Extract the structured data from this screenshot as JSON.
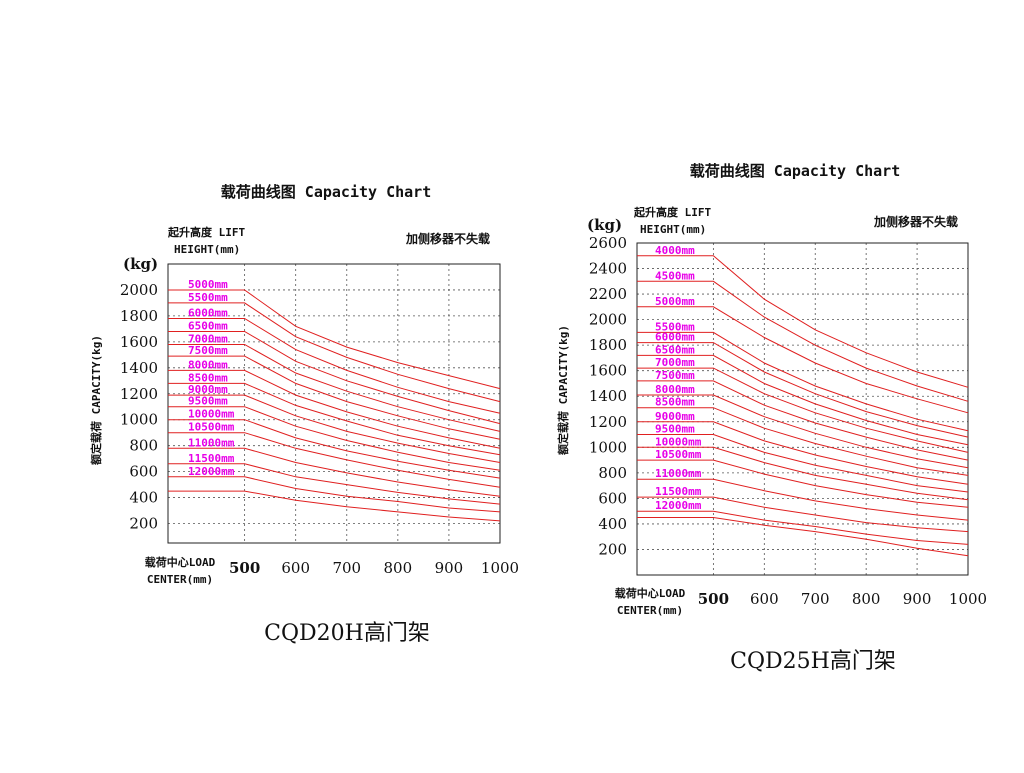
{
  "colors": {
    "curve": "#e02020",
    "lift_label": "#e800e8",
    "grid": "#555555",
    "frame": "#222222"
  },
  "chart_data": [
    {
      "type": "line",
      "title": "载荷曲线图 Capacity Chart",
      "lift_header_line1": "起升高度 LIFT",
      "lift_header_line2": "HEIGHT(mm)",
      "note": "加侧移器不失载",
      "y_unit": "(kg)",
      "ylabel": "额定载荷 CAPACITY(kg)",
      "xlabel_line1": "载荷中心LOAD",
      "xlabel_line2": "CENTER(mm)",
      "model": "CQD20H高门架",
      "xlim": [
        350,
        1000
      ],
      "ylim": [
        50,
        2200
      ],
      "x_ticks": [
        500,
        600,
        700,
        800,
        900,
        1000
      ],
      "y_ticks": [
        200,
        400,
        600,
        800,
        1000,
        1200,
        1400,
        1600,
        1800,
        2000
      ],
      "x_grid": [
        500,
        600,
        700,
        800,
        900
      ],
      "y_grid": [
        200,
        400,
        600,
        800,
        1000,
        1200,
        1400,
        1600,
        1800,
        2000
      ],
      "x": [
        350,
        500,
        600,
        700,
        800,
        900,
        1000
      ],
      "series": [
        {
          "name": "5000mm",
          "values": [
            2000,
            2000,
            1720,
            1560,
            1440,
            1340,
            1240
          ]
        },
        {
          "name": "5500mm",
          "values": [
            1900,
            1900,
            1640,
            1480,
            1350,
            1240,
            1140
          ]
        },
        {
          "name": "6000mm",
          "values": [
            1780,
            1780,
            1540,
            1380,
            1250,
            1140,
            1050
          ]
        },
        {
          "name": "6500mm",
          "values": [
            1680,
            1680,
            1450,
            1300,
            1180,
            1070,
            970
          ]
        },
        {
          "name": "7000mm",
          "values": [
            1580,
            1580,
            1360,
            1220,
            1100,
            1000,
            910
          ]
        },
        {
          "name": "7500mm",
          "values": [
            1490,
            1490,
            1280,
            1140,
            1030,
            930,
            850
          ]
        },
        {
          "name": "8000mm",
          "values": [
            1380,
            1380,
            1190,
            1060,
            950,
            860,
            780
          ]
        },
        {
          "name": "8500mm",
          "values": [
            1280,
            1280,
            1110,
            990,
            880,
            800,
            730
          ]
        },
        {
          "name": "9000mm",
          "values": [
            1190,
            1190,
            1030,
            910,
            820,
            740,
            670
          ]
        },
        {
          "name": "9500mm",
          "values": [
            1100,
            1100,
            950,
            840,
            750,
            670,
            610
          ]
        },
        {
          "name": "10000mm",
          "values": [
            1000,
            1000,
            860,
            760,
            680,
            610,
            550
          ]
        },
        {
          "name": "10500mm",
          "values": [
            900,
            900,
            780,
            690,
            610,
            540,
            480
          ]
        },
        {
          "name": "11000mm",
          "values": [
            780,
            780,
            670,
            590,
            520,
            460,
            410
          ]
        },
        {
          "name": "11500mm",
          "values": [
            660,
            660,
            560,
            500,
            440,
            390,
            350
          ]
        },
        {
          "name": "12000mm",
          "values": [
            560,
            560,
            470,
            410,
            370,
            320,
            290
          ]
        },
        {
          "name": "",
          "values": [
            450,
            450,
            380,
            330,
            290,
            250,
            220
          ]
        }
      ]
    },
    {
      "type": "line",
      "title": "载荷曲线图 Capacity Chart",
      "lift_header_line1": "起升高度 LIFT",
      "lift_header_line2": "HEIGHT(mm)",
      "note": "加侧移器不失载",
      "y_unit": "(kg)",
      "ylabel": "额定载荷 CAPACITY(kg)",
      "xlabel_line1": "载荷中心LOAD",
      "xlabel_line2": "CENTER(mm)",
      "model": "CQD25H高门架",
      "xlim": [
        350,
        1000
      ],
      "ylim": [
        0,
        2600
      ],
      "x_ticks": [
        500,
        600,
        700,
        800,
        900,
        1000
      ],
      "y_ticks": [
        200,
        400,
        600,
        800,
        1000,
        1200,
        1400,
        1600,
        1800,
        2000,
        2200,
        2400,
        2600
      ],
      "x_grid": [
        500,
        600,
        700,
        800,
        900
      ],
      "y_grid": [
        200,
        400,
        600,
        800,
        1000,
        1200,
        1400,
        1600,
        1800,
        2000,
        2200,
        2400
      ],
      "x": [
        350,
        500,
        600,
        700,
        800,
        900,
        1000
      ],
      "series": [
        {
          "name": "4000mm",
          "values": [
            2500,
            2500,
            2160,
            1920,
            1740,
            1590,
            1470
          ]
        },
        {
          "name": "4500mm",
          "values": [
            2300,
            2300,
            2020,
            1800,
            1620,
            1480,
            1360
          ]
        },
        {
          "name": "5000mm",
          "values": [
            2100,
            2100,
            1860,
            1660,
            1500,
            1380,
            1270
          ]
        },
        {
          "name": "5500mm",
          "values": [
            1900,
            1900,
            1660,
            1480,
            1340,
            1220,
            1130
          ]
        },
        {
          "name": "6000mm",
          "values": [
            1820,
            1820,
            1590,
            1420,
            1280,
            1170,
            1080
          ]
        },
        {
          "name": "6500mm",
          "values": [
            1720,
            1720,
            1500,
            1340,
            1210,
            1100,
            1020
          ]
        },
        {
          "name": "7000mm",
          "values": [
            1620,
            1620,
            1420,
            1270,
            1150,
            1050,
            960
          ]
        },
        {
          "name": "7500mm",
          "values": [
            1520,
            1520,
            1330,
            1190,
            1080,
            980,
            900
          ]
        },
        {
          "name": "8000mm",
          "values": [
            1410,
            1410,
            1240,
            1110,
            1000,
            910,
            840
          ]
        },
        {
          "name": "8500mm",
          "values": [
            1310,
            1310,
            1150,
            1030,
            930,
            840,
            780
          ]
        },
        {
          "name": "9000mm",
          "values": [
            1200,
            1200,
            1050,
            940,
            850,
            770,
            710
          ]
        },
        {
          "name": "9500mm",
          "values": [
            1100,
            1100,
            960,
            860,
            780,
            700,
            650
          ]
        },
        {
          "name": "10000mm",
          "values": [
            1000,
            1000,
            880,
            780,
            710,
            640,
            590
          ]
        },
        {
          "name": "10500mm",
          "values": [
            900,
            900,
            790,
            700,
            630,
            570,
            530
          ]
        },
        {
          "name": "11000mm",
          "values": [
            750,
            750,
            660,
            580,
            520,
            470,
            430
          ]
        },
        {
          "name": "11500mm",
          "values": [
            610,
            610,
            530,
            470,
            410,
            370,
            340
          ]
        },
        {
          "name": "12000mm",
          "values": [
            500,
            500,
            430,
            380,
            320,
            270,
            240
          ]
        },
        {
          "name": "",
          "values": [
            450,
            450,
            390,
            340,
            280,
            210,
            150
          ]
        }
      ]
    }
  ]
}
